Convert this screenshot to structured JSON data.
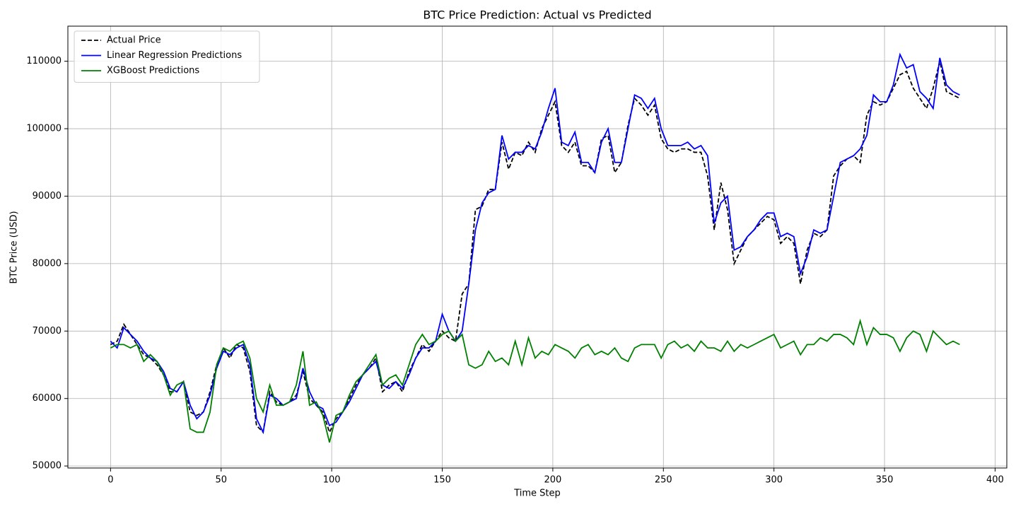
{
  "chart_data": {
    "type": "line",
    "title": "BTC Price Prediction: Actual vs Predicted",
    "xlabel": "Time Step",
    "ylabel": "BTC Price (USD)",
    "x": [
      0,
      3,
      6,
      9,
      12,
      15,
      18,
      21,
      24,
      27,
      30,
      33,
      36,
      39,
      42,
      45,
      48,
      51,
      54,
      57,
      60,
      63,
      66,
      69,
      72,
      75,
      78,
      81,
      84,
      87,
      90,
      93,
      96,
      99,
      102,
      105,
      108,
      111,
      114,
      117,
      120,
      123,
      126,
      129,
      132,
      135,
      138,
      141,
      144,
      147,
      150,
      153,
      156,
      159,
      162,
      165,
      168,
      171,
      174,
      177,
      180,
      183,
      186,
      189,
      192,
      195,
      198,
      201,
      204,
      207,
      210,
      213,
      216,
      219,
      222,
      225,
      228,
      231,
      234,
      237,
      240,
      243,
      246,
      249,
      252,
      255,
      258,
      261,
      264,
      267,
      270,
      273,
      276,
      279,
      282,
      285,
      288,
      291,
      294,
      297,
      300,
      303,
      306,
      309,
      312,
      315,
      318,
      321,
      324,
      327,
      330,
      333,
      336,
      339,
      342,
      345,
      348,
      351,
      354,
      357,
      360,
      363,
      366,
      369,
      372,
      375,
      378,
      381,
      384
    ],
    "series": [
      {
        "name": "Actual Price",
        "color": "#000000",
        "linestyle": "dashed",
        "values": [
          68000,
          68500,
          71000,
          69500,
          68000,
          66500,
          66000,
          65000,
          63500,
          61000,
          61000,
          62500,
          58000,
          57500,
          58000,
          61000,
          65000,
          67500,
          66000,
          68000,
          67500,
          64000,
          56000,
          55000,
          61000,
          59500,
          59000,
          59500,
          60500,
          64000,
          60000,
          59000,
          58000,
          55000,
          57000,
          58000,
          60000,
          62000,
          63500,
          64500,
          66000,
          61000,
          62000,
          62500,
          61000,
          64000,
          66000,
          68000,
          67000,
          68500,
          70000,
          69000,
          68500,
          75500,
          77000,
          88000,
          88500,
          91000,
          91000,
          98000,
          94000,
          96500,
          96000,
          98000,
          96500,
          100000,
          102000,
          104000,
          97500,
          96500,
          98000,
          94500,
          94500,
          93500,
          98500,
          99000,
          93500,
          95000,
          100500,
          104500,
          103500,
          102000,
          103500,
          98500,
          97000,
          96500,
          97000,
          97000,
          96500,
          96500,
          93000,
          85000,
          92000,
          88000,
          80000,
          82000,
          84000,
          85000,
          86000,
          87000,
          86500,
          83000,
          84000,
          83000,
          77000,
          82000,
          84500,
          84000,
          85000,
          93000,
          94500,
          95500,
          96000,
          95000,
          102000,
          104000,
          103500,
          104000,
          106000,
          108000,
          108500,
          106000,
          104500,
          103000,
          106000,
          110000,
          105500,
          105000,
          104500
        ]
      },
      {
        "name": "Linear Regression Predictions",
        "color": "#0000ff",
        "linestyle": "solid",
        "values": [
          68500,
          67500,
          70500,
          69500,
          68500,
          67000,
          66000,
          65500,
          64000,
          61500,
          61000,
          62500,
          59000,
          57000,
          58000,
          60500,
          64500,
          67000,
          66500,
          67500,
          68000,
          65000,
          57000,
          55000,
          60500,
          60000,
          59000,
          59500,
          60000,
          64500,
          61000,
          59000,
          58500,
          56000,
          56500,
          58000,
          59500,
          61500,
          63500,
          64500,
          65500,
          62000,
          61500,
          62500,
          61500,
          63500,
          66000,
          67500,
          67500,
          68500,
          72500,
          70000,
          68500,
          70000,
          77000,
          85000,
          89000,
          90500,
          91000,
          99000,
          95500,
          96500,
          96500,
          97500,
          97000,
          99500,
          103000,
          106000,
          98000,
          97500,
          99500,
          95000,
          95000,
          93500,
          98000,
          100000,
          95000,
          95000,
          100000,
          105000,
          104500,
          103000,
          104500,
          100000,
          97500,
          97500,
          97500,
          98000,
          97000,
          97500,
          96000,
          86000,
          89000,
          90000,
          82000,
          82500,
          84000,
          85000,
          86500,
          87500,
          87500,
          84000,
          84500,
          84000,
          78500,
          81000,
          85000,
          84500,
          85000,
          90000,
          95000,
          95500,
          96000,
          97000,
          99000,
          105000,
          104000,
          104000,
          106500,
          111000,
          109000,
          109500,
          105500,
          104500,
          103000,
          110500,
          106500,
          105500,
          105000
        ]
      },
      {
        "name": "XGBoost Predictions",
        "color": "#008000",
        "linestyle": "solid",
        "values": [
          67500,
          68000,
          68000,
          67500,
          68000,
          65500,
          66500,
          65500,
          63500,
          60500,
          62000,
          62500,
          55500,
          55000,
          55000,
          58000,
          65000,
          67500,
          67000,
          68000,
          68500,
          66000,
          60000,
          58000,
          62000,
          59000,
          59000,
          59500,
          62000,
          67000,
          59000,
          59500,
          57500,
          53500,
          57500,
          58000,
          60500,
          62500,
          63500,
          65000,
          66500,
          62000,
          63000,
          63500,
          62000,
          65000,
          68000,
          69500,
          68000,
          68500,
          69500,
          70000,
          68500,
          69500,
          65000,
          64500,
          65000,
          67000,
          65500,
          66000,
          65000,
          68500,
          65000,
          69000,
          66000,
          67000,
          66500,
          68000,
          67500,
          67000,
          66000,
          67500,
          68000,
          66500,
          67000,
          66500,
          67500,
          66000,
          65500,
          67500,
          68000,
          68000,
          68000,
          66000,
          68000,
          68500,
          67500,
          68000,
          67000,
          68500,
          67500,
          67500,
          67000,
          68500,
          67000,
          68000,
          67500,
          68000,
          68500,
          69000,
          69500,
          67500,
          68000,
          68500,
          66500,
          68000,
          68000,
          69000,
          68500,
          69500,
          69500,
          69000,
          68000,
          71500,
          68000,
          70500,
          69500,
          69500,
          69000,
          67000,
          69000,
          70000,
          69500,
          67000,
          70000,
          69000,
          68000,
          68500,
          68000
        ]
      }
    ],
    "xlim": [
      -19.3,
      405.3
    ],
    "xticks": [
      0,
      50,
      100,
      150,
      200,
      250,
      300,
      350,
      400
    ],
    "ylim": [
      49700,
      115200
    ],
    "yticks": [
      50000,
      60000,
      70000,
      80000,
      90000,
      100000,
      110000
    ],
    "grid": true,
    "legend": "upper left"
  }
}
